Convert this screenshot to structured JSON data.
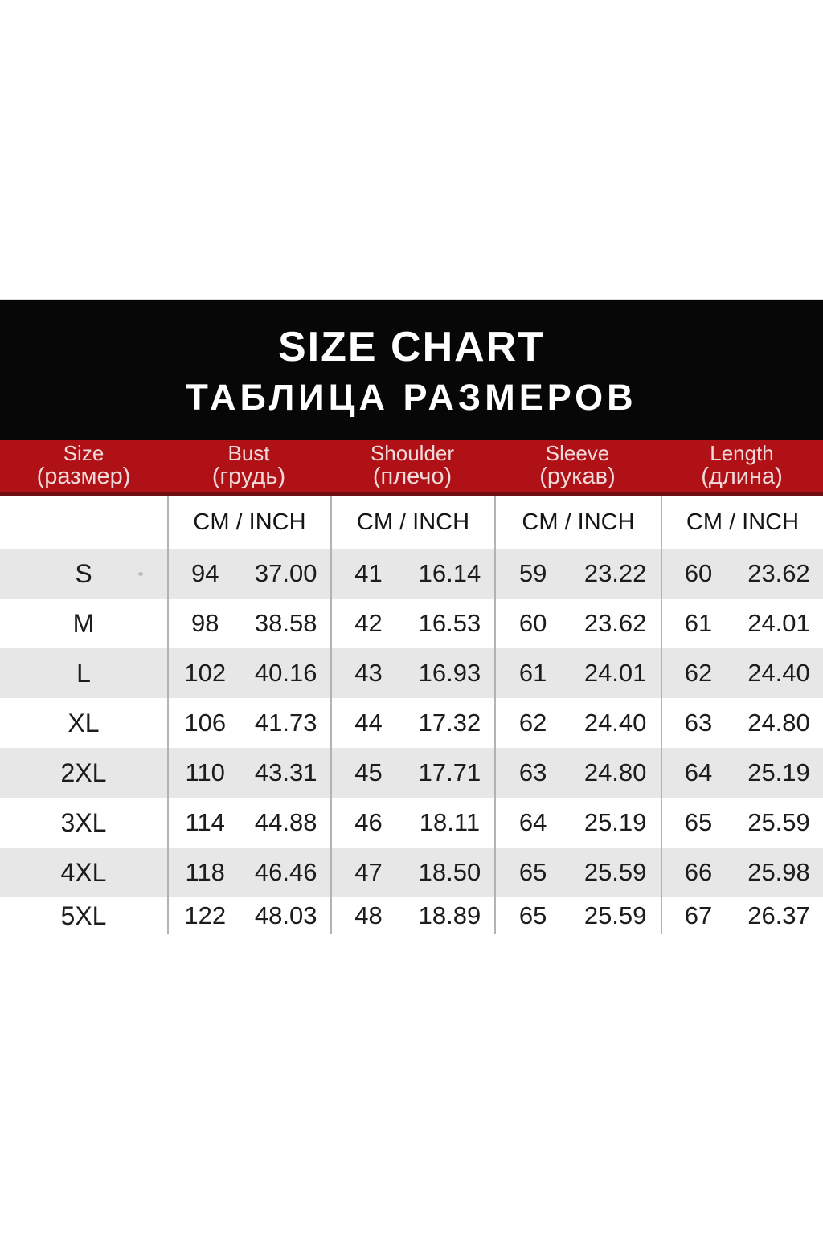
{
  "banner": {
    "title": "SIZE CHART",
    "subtitle_ru": "ТАБЛИЦА РАЗМЕРОВ",
    "bg": "#070707",
    "text_color": "#ffffff"
  },
  "header": {
    "bg": "#b01116",
    "text_color": "#f2dada",
    "columns": [
      {
        "en": "Size",
        "ru": "(размер)"
      },
      {
        "en": "Bust",
        "ru": "(грудь)"
      },
      {
        "en": "Shoulder",
        "ru": "(плечо)"
      },
      {
        "en": "Sleeve",
        "ru": "(рукав)"
      },
      {
        "en": "Length",
        "ru": "(длина)"
      }
    ]
  },
  "units_label": "CM / INCH",
  "styles": {
    "row_alt_bg": "#e7e7e7",
    "divider_color": "#b3b3b3",
    "accent_red": "#b01116",
    "banner_black": "#070707"
  },
  "chart_data": {
    "type": "table",
    "title": "SIZE CHART",
    "title_ru": "ТАБЛИЦА РАЗМЕРОВ",
    "column_groups": [
      "Size (размер)",
      "Bust (грудь)",
      "Shoulder (плечо)",
      "Sleeve (рукав)",
      "Length (длина)"
    ],
    "units_per_group": [
      "CM",
      "INCH"
    ],
    "columns": [
      "Size",
      "Bust CM",
      "Bust INCH",
      "Shoulder CM",
      "Shoulder INCH",
      "Sleeve CM",
      "Sleeve INCH",
      "Length CM",
      "Length INCH"
    ],
    "rows": [
      {
        "size": "S",
        "cells": [
          "94",
          "37.00",
          "41",
          "16.14",
          "59",
          "23.22",
          "60",
          "23.62"
        ]
      },
      {
        "size": "M",
        "cells": [
          "98",
          "38.58",
          "42",
          "16.53",
          "60",
          "23.62",
          "61",
          "24.01"
        ]
      },
      {
        "size": "L",
        "cells": [
          "102",
          "40.16",
          "43",
          "16.93",
          "61",
          "24.01",
          "62",
          "24.40"
        ]
      },
      {
        "size": "XL",
        "cells": [
          "106",
          "41.73",
          "44",
          "17.32",
          "62",
          "24.40",
          "63",
          "24.80"
        ]
      },
      {
        "size": "2XL",
        "cells": [
          "110",
          "43.31",
          "45",
          "17.71",
          "63",
          "24.80",
          "64",
          "25.19"
        ]
      },
      {
        "size": "3XL",
        "cells": [
          "114",
          "44.88",
          "46",
          "18.11",
          "64",
          "25.19",
          "65",
          "25.59"
        ]
      },
      {
        "size": "4XL",
        "cells": [
          "118",
          "46.46",
          "47",
          "18.50",
          "65",
          "25.59",
          "66",
          "25.98"
        ]
      },
      {
        "size": "5XL",
        "cells": [
          "122",
          "48.03",
          "48",
          "18.89",
          "65",
          "25.59",
          "67",
          "26.37"
        ]
      }
    ]
  }
}
